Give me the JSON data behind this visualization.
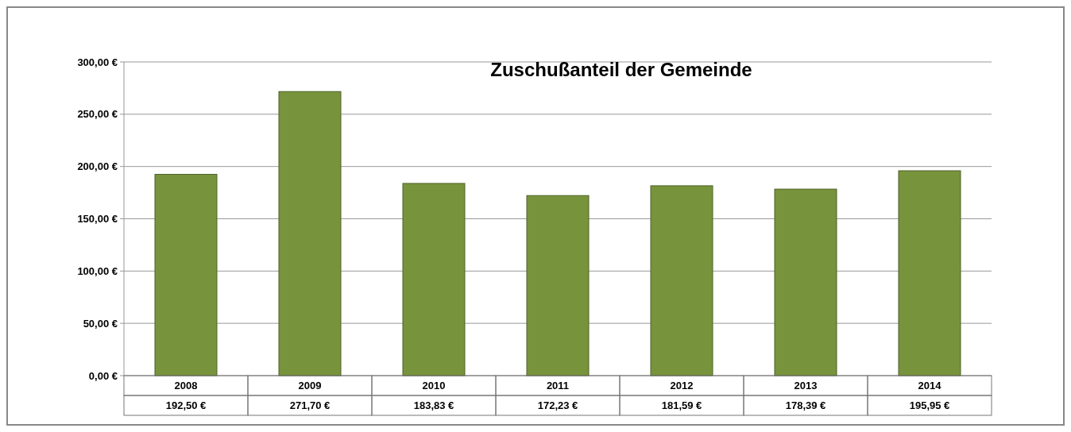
{
  "chart_data": {
    "type": "bar",
    "title": "Zuschußanteil der Gemeinde",
    "categories": [
      "2008",
      "2009",
      "2010",
      "2011",
      "2012",
      "2013",
      "2014"
    ],
    "values": [
      192.5,
      271.7,
      183.83,
      172.23,
      181.59,
      178.39,
      195.95
    ],
    "value_labels": [
      "192,50 €",
      "271,70 €",
      "183,83 €",
      "172,23 €",
      "181,59 €",
      "178,39 €",
      "195,95 €"
    ],
    "color": "#77933c",
    "ylim": [
      0,
      300
    ],
    "yticks": [
      {
        "value": 0,
        "label": "0,00 €"
      },
      {
        "value": 50,
        "label": "50,00 €"
      },
      {
        "value": 100,
        "label": "100,00 €"
      },
      {
        "value": 150,
        "label": "150,00 €"
      },
      {
        "value": 200,
        "label": "200,00 €"
      },
      {
        "value": 250,
        "label": "250,00 €"
      },
      {
        "value": 300,
        "label": "300,00 €"
      }
    ],
    "grid": "y"
  }
}
